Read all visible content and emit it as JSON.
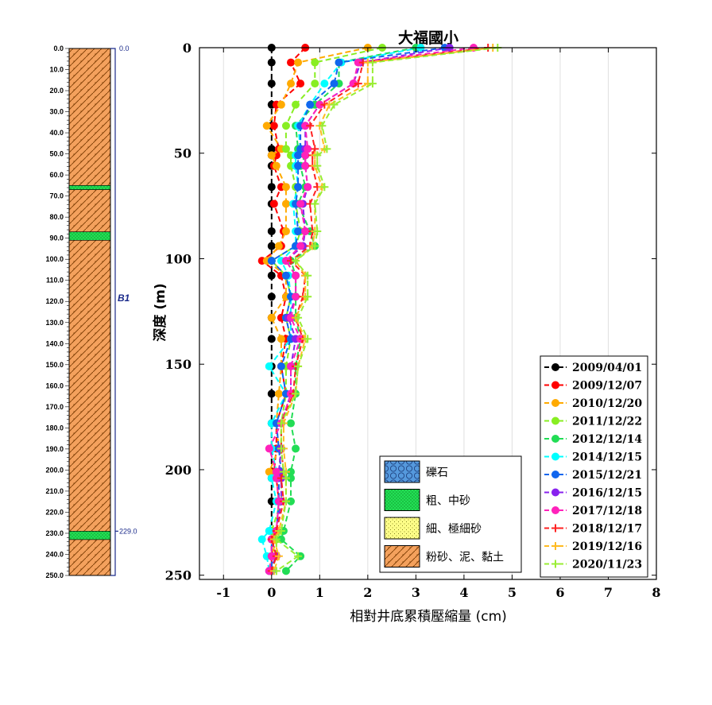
{
  "chart_data": {
    "type": "line",
    "title": "大福國小",
    "xlabel": "相對井底累積壓縮量 (cm)",
    "ylabel": "深度 (m)",
    "xlim": [
      -1.5,
      8
    ],
    "ylim": [
      252,
      0
    ],
    "xticks": [
      "-1",
      "0",
      "1",
      "2",
      "3",
      "4",
      "5",
      "6",
      "7",
      "8"
    ],
    "yticks": [
      "0",
      "50",
      "100",
      "150",
      "200",
      "250"
    ],
    "grid": "vertical",
    "legend_position": "bottom-right",
    "depths": [
      0,
      7,
      17,
      27,
      37,
      48,
      51,
      56,
      66,
      74,
      87,
      94,
      101,
      108,
      118,
      128,
      138,
      151,
      164,
      178,
      190,
      201,
      204,
      215,
      229,
      233,
      241,
      248
    ],
    "series": [
      {
        "name": "2009/04/01",
        "color": "#000000",
        "marker": "circle",
        "values": [
          0,
          0,
          0,
          0,
          0,
          0,
          0,
          0,
          0,
          0,
          0,
          0,
          0,
          0,
          0,
          0,
          0,
          0,
          0,
          0,
          0,
          0,
          0,
          0,
          0,
          0,
          0,
          0
        ]
      },
      {
        "name": "2009/12/07",
        "color": "#ff0000",
        "marker": "circle",
        "values": [
          0.7,
          0.4,
          0.6,
          0.1,
          0.05,
          0.15,
          0.1,
          0.05,
          0.2,
          0.05,
          0.25,
          0.2,
          -0.2,
          0.2,
          0.3,
          0.2,
          0.3,
          0.2,
          0.3,
          0.1,
          0.1,
          0.05,
          0.1,
          0.15,
          0.1,
          0.05,
          0.0,
          0.0
        ]
      },
      {
        "name": "2010/12/20",
        "color": "#ffaa00",
        "marker": "circle",
        "values": [
          2.0,
          0.55,
          0.4,
          0.2,
          -0.1,
          0.2,
          0.0,
          0.1,
          0.3,
          0.3,
          0.3,
          0.15,
          -0.1,
          0.3,
          0.3,
          0.0,
          0.2,
          0.2,
          0.15,
          0.1,
          0.15,
          -0.05,
          0.1,
          0.15,
          0.1,
          0.1,
          0.0,
          -0.05
        ]
      },
      {
        "name": "2011/12/22",
        "color": "#88ee22",
        "marker": "circle",
        "values": [
          2.3,
          0.9,
          0.9,
          0.5,
          0.3,
          0.3,
          0.4,
          0.4,
          0.5,
          0.5,
          0.6,
          0.5,
          0.0,
          0.3,
          0.4,
          0.3,
          0.4,
          0.3,
          0.3,
          0.2,
          0.2,
          0.15,
          0.2,
          0.2,
          0.0,
          0.1,
          0.1,
          0.0
        ]
      },
      {
        "name": "2012/12/14",
        "color": "#22dd55",
        "marker": "circle",
        "values": [
          3.0,
          1.4,
          1.4,
          0.9,
          0.5,
          0.55,
          0.7,
          0.6,
          0.7,
          0.55,
          0.8,
          0.9,
          0.4,
          0.5,
          0.5,
          0.5,
          0.6,
          0.5,
          0.5,
          0.4,
          0.5,
          0.4,
          0.4,
          0.4,
          0.25,
          0.2,
          0.6,
          0.3
        ]
      },
      {
        "name": "2014/12/15",
        "color": "#00ffff",
        "marker": "circle",
        "values": [
          3.1,
          1.45,
          1.1,
          0.8,
          0.55,
          0.6,
          0.5,
          0.5,
          0.55,
          0.45,
          0.5,
          0.5,
          0.2,
          0.35,
          0.4,
          0.4,
          0.4,
          -0.05,
          0.3,
          0.0,
          0.0,
          0.1,
          0.0,
          0.1,
          -0.05,
          -0.2,
          -0.1,
          -0.05
        ]
      },
      {
        "name": "2015/12/21",
        "color": "#1166ee",
        "marker": "circle",
        "values": [
          3.6,
          1.4,
          1.3,
          0.8,
          0.6,
          0.6,
          0.55,
          0.55,
          0.55,
          0.5,
          0.55,
          0.5,
          0.0,
          0.3,
          0.4,
          0.3,
          0.4,
          0.2,
          0.3,
          0.1,
          0.15,
          0.2,
          0.15,
          0.15,
          0.1,
          0.0,
          0.0,
          0.0
        ]
      },
      {
        "name": "2016/12/15",
        "color": "#8822ee",
        "marker": "circle",
        "values": [
          3.7,
          1.85,
          1.7,
          1.0,
          0.7,
          0.7,
          0.7,
          0.7,
          0.75,
          0.65,
          0.7,
          0.65,
          0.3,
          0.5,
          0.5,
          0.35,
          0.5,
          0.4,
          0.4,
          0.2,
          0.2,
          0.15,
          0.2,
          0.2,
          0.1,
          0.0,
          0.1,
          -0.05
        ]
      },
      {
        "name": "2017/12/18",
        "color": "#ff22bb",
        "marker": "circle",
        "values": [
          4.2,
          1.8,
          1.7,
          1.0,
          0.7,
          0.75,
          0.7,
          0.7,
          0.75,
          0.6,
          0.7,
          0.6,
          0.3,
          0.5,
          0.5,
          0.4,
          0.6,
          0.4,
          0.4,
          0.2,
          -0.05,
          0.1,
          0.1,
          0.15,
          0.1,
          0.0,
          0.0,
          -0.05
        ]
      },
      {
        "name": "2018/12/17",
        "color": "#ff2222",
        "marker": "plus",
        "values": [
          4.5,
          1.9,
          1.8,
          1.1,
          0.8,
          0.9,
          0.85,
          0.85,
          0.95,
          0.8,
          0.85,
          0.8,
          0.4,
          0.7,
          0.65,
          0.5,
          0.65,
          0.5,
          0.45,
          0.2,
          0.2,
          0.25,
          0.2,
          0.25,
          0.1,
          0.0,
          0.1,
          0.0
        ]
      },
      {
        "name": "2019/12/16",
        "color": "#ffbb22",
        "marker": "plus",
        "values": [
          4.6,
          2.0,
          2.0,
          1.2,
          1.0,
          1.1,
          0.9,
          0.9,
          1.05,
          0.9,
          0.9,
          0.85,
          0.5,
          0.7,
          0.7,
          0.5,
          0.7,
          0.55,
          0.5,
          0.25,
          0.25,
          0.3,
          0.3,
          0.3,
          0.15,
          0.05,
          0.15,
          0.05
        ]
      },
      {
        "name": "2020/11/23",
        "color": "#99ee33",
        "marker": "plus",
        "values": [
          4.7,
          2.1,
          2.1,
          1.3,
          1.05,
          1.15,
          0.95,
          0.95,
          1.1,
          0.9,
          0.95,
          0.9,
          0.5,
          0.75,
          0.75,
          0.55,
          0.75,
          0.55,
          0.5,
          0.2,
          0.2,
          0.25,
          0.3,
          0.3,
          0.2,
          0.1,
          0.55,
          0.1
        ]
      }
    ]
  },
  "borehole": {
    "depth_ticks": [
      "0.0",
      "10.0",
      "20.0",
      "30.0",
      "40.0",
      "50.0",
      "60.0",
      "70.0",
      "80.0",
      "90.0",
      "100.0",
      "110.0",
      "120.0",
      "130.0",
      "140.0",
      "150.0",
      "160.0",
      "170.0",
      "180.0",
      "190.0",
      "200.0",
      "210.0",
      "220.0",
      "230.0",
      "240.0",
      "250.0"
    ],
    "well_top": "0.0",
    "well_bottom": "229.0",
    "well_name": "B1",
    "layers": [
      {
        "from": 0,
        "to": 65,
        "soil": "silt"
      },
      {
        "from": 65,
        "to": 67,
        "soil": "sand"
      },
      {
        "from": 67,
        "to": 87,
        "soil": "silt"
      },
      {
        "from": 87,
        "to": 91,
        "soil": "sand"
      },
      {
        "from": 91,
        "to": 229,
        "soil": "silt"
      },
      {
        "from": 229,
        "to": 233,
        "soil": "sand"
      },
      {
        "from": 233,
        "to": 250,
        "soil": "silt"
      }
    ]
  },
  "soil_legend": [
    {
      "key": "gravel",
      "label": "礫石"
    },
    {
      "key": "sand",
      "label": "粗、中砂"
    },
    {
      "key": "fine",
      "label": "細、極細砂"
    },
    {
      "key": "silt",
      "label": "粉砂、泥、黏土"
    }
  ]
}
